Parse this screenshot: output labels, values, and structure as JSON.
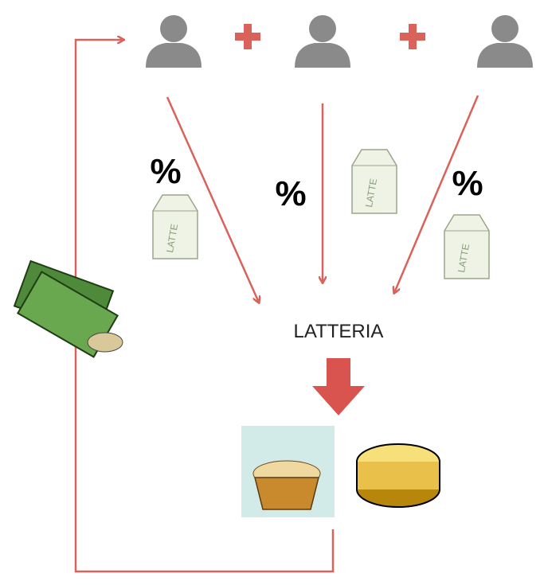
{
  "nodes": [
    {
      "label": "%"
    },
    {
      "label": "%"
    },
    {
      "label": "%"
    }
  ],
  "center": {
    "label": "LATTERIA"
  }
}
